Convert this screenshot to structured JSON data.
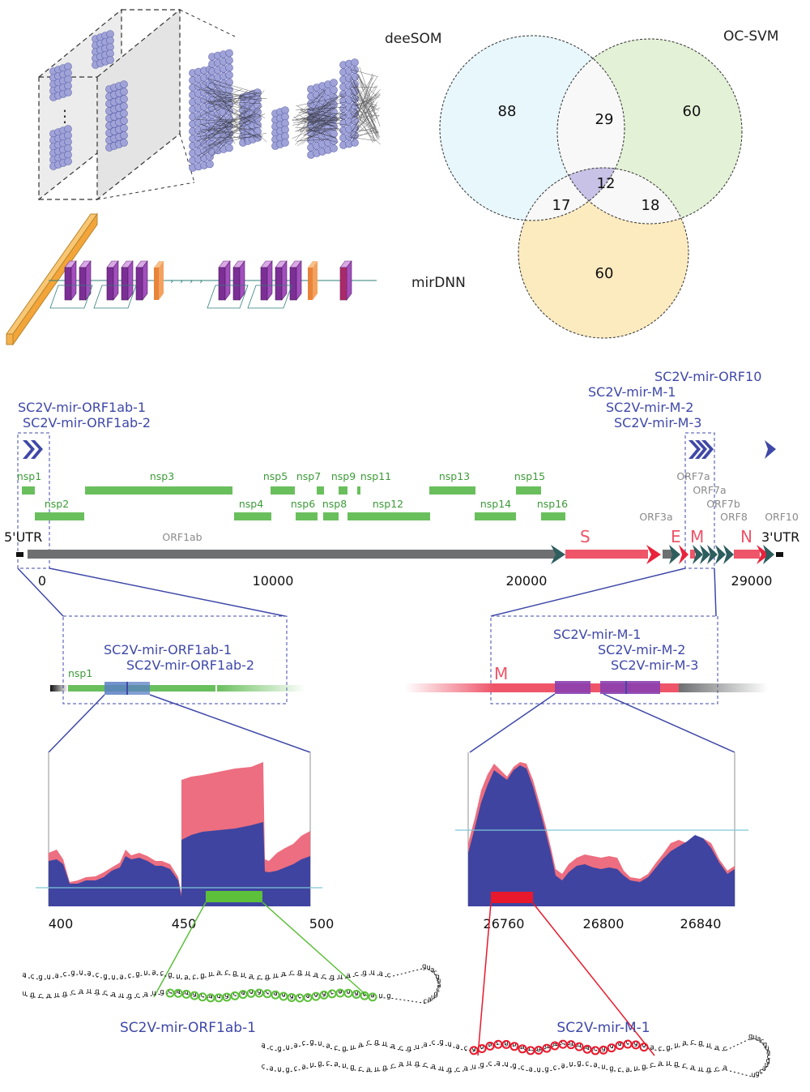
{
  "venn": {
    "labels": {
      "a": "deeSOM",
      "b": "OC-SVM",
      "c": "mirDNN"
    },
    "regions": {
      "a_only": "88",
      "b_only": "60",
      "c_only": "60",
      "ab": "29",
      "ac": "17",
      "bc": "18",
      "abc": "12"
    },
    "colors": {
      "a": "#e8f7fc",
      "b": "#e3f1d6",
      "c": "#fdebc0",
      "abc": "#c7c2e6",
      "overlap": "#f8f8f8"
    }
  },
  "network_dots": "⋮",
  "genome": {
    "mir_labels": {
      "orf1ab_1": "SC2V-mir-ORF1ab-1",
      "orf1ab_2": "SC2V-mir-ORF1ab-2",
      "orf10": "SC2V-mir-ORF10",
      "m1": "SC2V-mir-M-1",
      "m2": "SC2V-mir-M-2",
      "m3": "SC2V-mir-M-3"
    },
    "nsp": [
      "nsp1",
      "nsp2",
      "nsp3",
      "nsp4",
      "nsp5",
      "nsp6",
      "nsp7",
      "nsp8",
      "nsp9",
      "nsp11",
      "nsp12",
      "nsp13",
      "nsp14",
      "nsp15",
      "nsp16"
    ],
    "orfs": {
      "orf1ab": "ORF1ab",
      "orf3a": "ORF3a",
      "orf7a": "ORF7a",
      "orf7b": "ORF7b",
      "orf8": "ORF8",
      "orf10": "ORF10"
    },
    "structural": {
      "s": "S",
      "e": "E",
      "m": "M",
      "n": "N"
    },
    "utr5": "5'UTR",
    "utr3": "3'UTR",
    "ticks": [
      "0",
      "10000",
      "20000",
      "29000"
    ],
    "colors": {
      "mir": "#3f48a8",
      "nsp": "#6abf5d",
      "structural": "#ee5569",
      "backbone": "#6d6f70",
      "orf_label": "#8a8a8a"
    }
  },
  "zoom_left": {
    "nsp_label": "nsp1",
    "mir1": "SC2V-mir-ORF1ab-1",
    "mir2": "SC2V-mir-ORF1ab-2",
    "ticks": [
      "400",
      "450",
      "500"
    ]
  },
  "zoom_right": {
    "m_label": "M",
    "mir1": "SC2V-mir-M-1",
    "mir2": "SC2V-mir-M-2",
    "mir3": "SC2V-mir-M-3",
    "ticks": [
      "26760",
      "26800",
      "26840"
    ]
  },
  "hairpins": {
    "left_name": "SC2V-mir-ORF1ab-1",
    "right_name": "SC2V-mir-M-1"
  },
  "colors": {
    "coverage_pink": "#ec6e80",
    "coverage_blue": "#3f44a0",
    "threshold": "#7ec8d6",
    "mir_left_mark": "#5cc03a",
    "mir_right_mark": "#e8192c"
  }
}
